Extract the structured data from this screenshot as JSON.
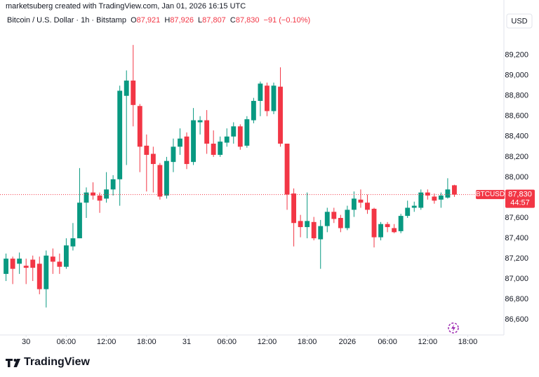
{
  "chart_data": {
    "type": "candlestick",
    "credit": "marketsuberg created with TradingView.com, Jan 01, 2026 16:15 UTC",
    "header": {
      "symbol": "Bitcoin / U.S. Dollar · 1h · Bitstamp",
      "o_key": "O",
      "o": "87,921",
      "h_key": "H",
      "h": "87,926",
      "l_key": "L",
      "l": "87,807",
      "c_key": "C",
      "c": "87,830",
      "change": "−91 (−0.10%)"
    },
    "currency": "USD",
    "brand": "TradingView",
    "x": [
      -3,
      -2,
      -1,
      0,
      1,
      2,
      3,
      4,
      5,
      6,
      7,
      8,
      9,
      10,
      11,
      12,
      13,
      14,
      15,
      16,
      17,
      18,
      19,
      20,
      21,
      22,
      23,
      24,
      25,
      26,
      27,
      28,
      29,
      30,
      31,
      32,
      33,
      34,
      35,
      36,
      37,
      38,
      39,
      40,
      41,
      42,
      43,
      44,
      45,
      46,
      47,
      48,
      49,
      50,
      51,
      52,
      53,
      54,
      55,
      56,
      57,
      58,
      59,
      60,
      61,
      62,
      63,
      64
    ],
    "open": [
      87050,
      87200,
      87150,
      87130,
      87190,
      87150,
      86900,
      87220,
      87170,
      87120,
      87320,
      87400,
      87750,
      87850,
      87820,
      87790,
      87880,
      87980,
      88800,
      88950,
      88700,
      88310,
      88230,
      88120,
      87820,
      88150,
      88300,
      88400,
      88150,
      88540,
      88560,
      88330,
      88220,
      88340,
      88400,
      88500,
      88310,
      88560,
      88750,
      88900,
      88650,
      88890,
      88330,
      87840,
      87570,
      87510,
      87560,
      87390,
      87520,
      87660,
      87600,
      87500,
      87680,
      87780,
      87750,
      87690,
      87410,
      87540,
      87500,
      87470,
      87620,
      87700,
      87700,
      87850,
      87810,
      87780,
      87800,
      87921
    ],
    "high": [
      87250,
      87220,
      87260,
      87200,
      87230,
      87220,
      87280,
      87300,
      87250,
      87400,
      87550,
      88090,
      87900,
      87950,
      87850,
      88050,
      88020,
      88900,
      89050,
      89300,
      88720,
      88420,
      88300,
      88140,
      88200,
      88380,
      88480,
      88440,
      88680,
      88600,
      88660,
      88460,
      88400,
      88480,
      88540,
      88520,
      88600,
      88780,
      88940,
      88930,
      88930,
      89080,
      88330,
      87890,
      87630,
      87850,
      87610,
      87580,
      87700,
      87700,
      87630,
      87720,
      87860,
      87880,
      87830,
      87700,
      87560,
      87560,
      87540,
      87640,
      87770,
      87760,
      87880,
      87880,
      87840,
      87850,
      87990,
      87926
    ],
    "low": [
      86980,
      86950,
      87050,
      86950,
      86980,
      86850,
      86720,
      87050,
      87050,
      87100,
      87280,
      87400,
      87600,
      87780,
      87650,
      87750,
      87820,
      87720,
      88120,
      88500,
      88050,
      87860,
      87850,
      87780,
      87790,
      88050,
      88220,
      88080,
      88120,
      88420,
      88230,
      88200,
      88200,
      88300,
      88330,
      88270,
      88290,
      88530,
      88600,
      88600,
      88620,
      88300,
      87680,
      87320,
      87410,
      87400,
      87380,
      87100,
      87460,
      87550,
      87460,
      87480,
      87610,
      87700,
      87640,
      87310,
      87380,
      87460,
      87450,
      87450,
      87600,
      87660,
      87680,
      87780,
      87740,
      87700,
      87790,
      87807
    ],
    "close": [
      87200,
      87100,
      87200,
      87110,
      87110,
      86900,
      87230,
      87170,
      87120,
      87330,
      87400,
      87750,
      87850,
      87820,
      87770,
      87880,
      87980,
      88850,
      88950,
      88710,
      88300,
      88220,
      88130,
      87810,
      88160,
      88300,
      88380,
      88130,
      88560,
      88560,
      88330,
      88220,
      88350,
      88400,
      88500,
      88300,
      88570,
      88750,
      88920,
      88650,
      88900,
      88330,
      87830,
      87550,
      87510,
      87570,
      87400,
      87520,
      87660,
      87590,
      87500,
      87680,
      87790,
      87750,
      87680,
      87410,
      87540,
      87510,
      87460,
      87620,
      87700,
      87720,
      87850,
      87820,
      87770,
      87820,
      87880,
      87830
    ],
    "up_color": "#089981",
    "down_color": "#f23645",
    "xlim": [
      -3.9,
      71.4
    ],
    "xticks": [
      {
        "value": 0,
        "label": "30"
      },
      {
        "value": 6,
        "label": "06:00"
      },
      {
        "value": 12,
        "label": "12:00"
      },
      {
        "value": 18,
        "label": "18:00"
      },
      {
        "value": 24,
        "label": "31"
      },
      {
        "value": 30,
        "label": "06:00"
      },
      {
        "value": 36,
        "label": "12:00"
      },
      {
        "value": 42,
        "label": "18:00"
      },
      {
        "value": 48,
        "label": "2026"
      },
      {
        "value": 54,
        "label": "06:00"
      },
      {
        "value": 60,
        "label": "12:00"
      },
      {
        "value": 66,
        "label": "18:00"
      }
    ],
    "ylim": [
      86450,
      89480
    ],
    "yticks": [
      {
        "value": 89200,
        "label": "89,200"
      },
      {
        "value": 89000,
        "label": "89,000"
      },
      {
        "value": 88800,
        "label": "88,800"
      },
      {
        "value": 88600,
        "label": "88,600"
      },
      {
        "value": 88400,
        "label": "88,400"
      },
      {
        "value": 88200,
        "label": "88,200"
      },
      {
        "value": 88000,
        "label": "88,000"
      },
      {
        "value": 87800,
        "label": "87,800"
      },
      {
        "value": 87600,
        "label": "87,600"
      },
      {
        "value": 87400,
        "label": "87,400"
      },
      {
        "value": 87200,
        "label": "87,200"
      },
      {
        "value": 87000,
        "label": "87,000"
      },
      {
        "value": 86800,
        "label": "86,800"
      },
      {
        "value": 86600,
        "label": "86,600"
      }
    ],
    "price_tag": {
      "symbol": "BTCUSD",
      "label": "87,830",
      "countdown": "44:57"
    }
  }
}
